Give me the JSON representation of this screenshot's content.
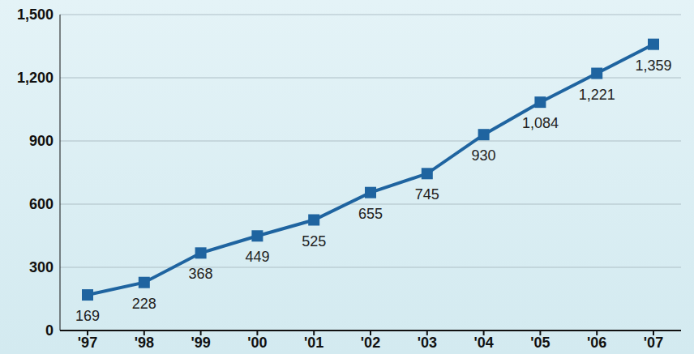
{
  "chart_data": {
    "type": "line",
    "categories": [
      "'97",
      "'98",
      "'99",
      "'00",
      "'01",
      "'02",
      "'03",
      "'04",
      "'05",
      "'06",
      "'07"
    ],
    "values": [
      169,
      228,
      368,
      449,
      525,
      655,
      745,
      930,
      1084,
      1221,
      1359
    ],
    "value_labels": [
      "169",
      "228",
      "368",
      "449",
      "525",
      "655",
      "745",
      "930",
      "1,084",
      "1,221",
      "1,359"
    ],
    "data_labels": true,
    "color": "#1f64a0",
    "marker": "square",
    "ylim": [
      0,
      1500
    ],
    "yticks": [
      0,
      300,
      600,
      900,
      {
        "value": 1200,
        "label": "1,200"
      },
      {
        "value": 1500,
        "label": "1,500"
      }
    ],
    "grid": true
  }
}
